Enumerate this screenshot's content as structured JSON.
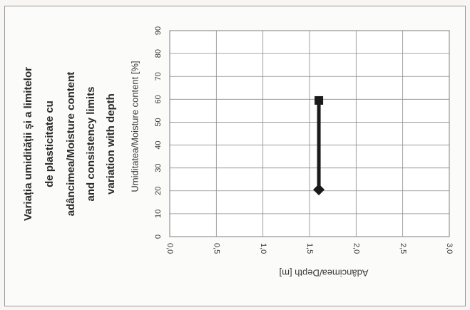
{
  "chart_data": {
    "type": "line",
    "title_lines": [
      "Variația umidității și a limitelor",
      "de plasticitate cu",
      "adâncimea/Moisture content",
      "and consistency limits",
      "variation with depth"
    ],
    "xlabel": "Adâncimea/Depth  [m]",
    "ylabel": "Umiditatea/Moisture content  [%]",
    "xlim": [
      0,
      3
    ],
    "ylim": [
      0,
      90
    ],
    "x_ticks": [
      "0,0",
      "0,5",
      "1,0",
      "1,5",
      "2,0",
      "2,5",
      "3,0"
    ],
    "y_ticks": [
      "0",
      "10",
      "20",
      "30",
      "40",
      "50",
      "60",
      "70",
      "80",
      "90"
    ],
    "grid": true,
    "series": [
      {
        "points": [
          {
            "x": 1.6,
            "y": 20.5,
            "marker": "diamond"
          },
          {
            "x": 1.6,
            "y": 59.5,
            "marker": "square"
          }
        ],
        "color": "#1a1a1a"
      }
    ]
  }
}
